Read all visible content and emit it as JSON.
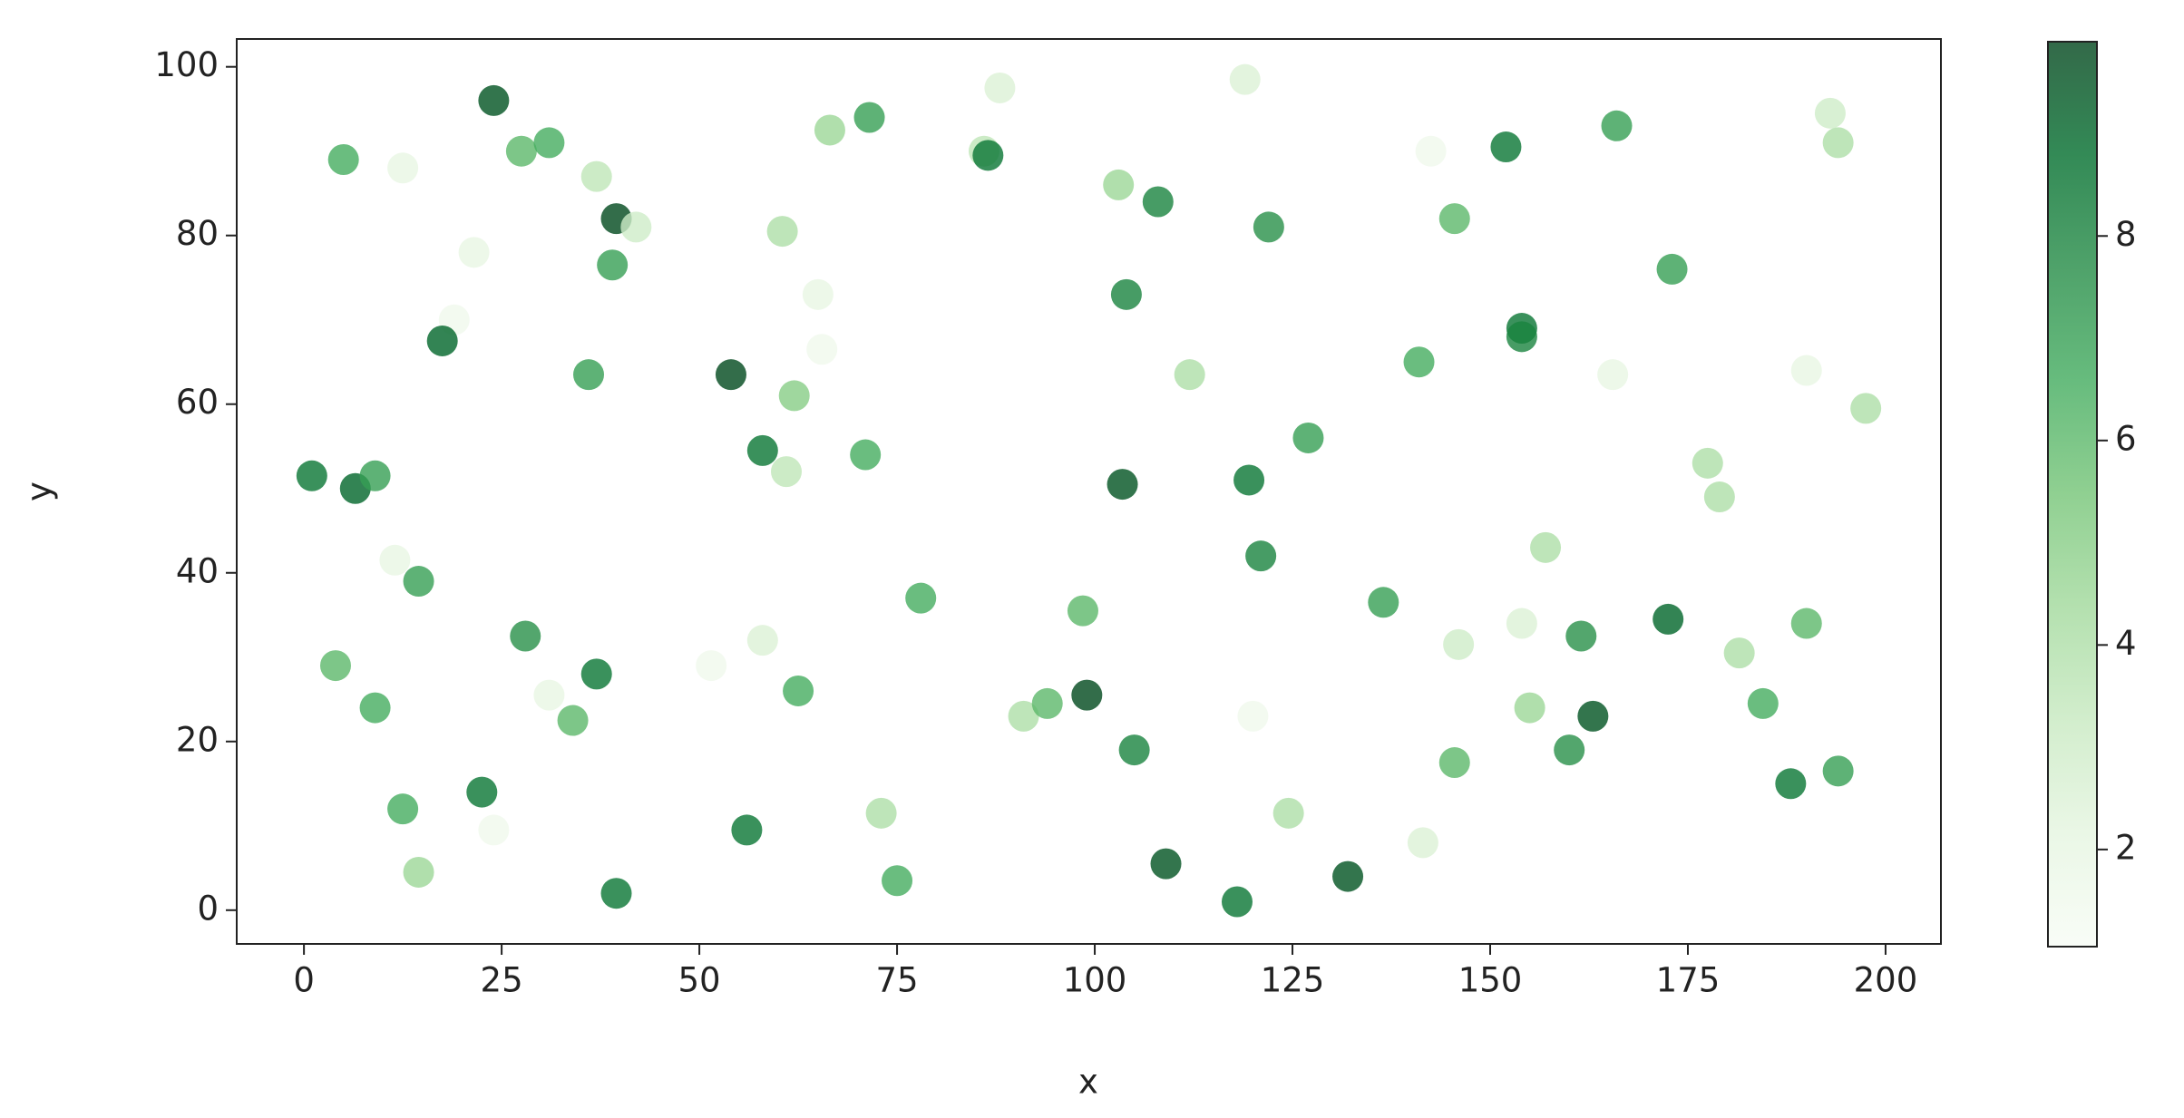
{
  "chart_data": {
    "type": "scatter",
    "xlabel": "x",
    "ylabel": "y",
    "x": [
      24,
      5,
      12.5,
      27.5,
      31,
      37,
      39.5,
      42,
      21.5,
      39,
      19,
      17.5,
      36,
      1,
      6.5,
      9,
      11.5,
      14.5,
      4,
      9,
      12.5,
      14.5,
      22.5,
      24,
      28,
      31,
      34,
      37,
      39.5,
      54,
      58,
      61,
      60.5,
      62,
      65,
      65.5,
      66.5,
      71.5,
      71,
      62.5,
      58,
      51.5,
      56,
      73,
      75,
      78,
      86,
      86.5,
      88,
      103,
      108,
      104,
      112,
      103.5,
      98.5,
      91,
      94,
      99,
      105,
      109,
      118,
      119,
      122,
      119.5,
      121,
      127,
      120,
      124.5,
      132,
      136.5,
      141,
      142.5,
      145.5,
      146,
      145.5,
      141.5,
      152,
      154,
      154,
      155,
      154,
      157,
      161.5,
      160,
      163,
      166,
      165.5,
      173,
      172.5,
      177.5,
      179,
      181.5,
      184.5,
      188,
      194,
      190,
      190,
      193,
      194,
      197.5
    ],
    "y": [
      96,
      89,
      88,
      90,
      91,
      87,
      82,
      81,
      78,
      76.5,
      70,
      67.5,
      63.5,
      51.5,
      50,
      51.5,
      41.5,
      39,
      29,
      24,
      12,
      4.5,
      14,
      9.5,
      32.5,
      25.5,
      22.5,
      28,
      2,
      63.5,
      54.5,
      52,
      80.5,
      61,
      73,
      66.5,
      92.5,
      94,
      54,
      26,
      32,
      29,
      9.5,
      11.5,
      3.5,
      37,
      90,
      89.5,
      97.5,
      86,
      84,
      73,
      63.5,
      50.5,
      35.5,
      23,
      24.5,
      25.5,
      19,
      5.5,
      1,
      98.5,
      81,
      51,
      42,
      56,
      23,
      11.5,
      4,
      36.5,
      65,
      90,
      82,
      31.5,
      17.5,
      8,
      90.5,
      69,
      68,
      24,
      34,
      43,
      32.5,
      19,
      23,
      93,
      63.5,
      76,
      34.5,
      53,
      49,
      30.5,
      24.5,
      15,
      16.5,
      34,
      64,
      94.5,
      91,
      59.5
    ],
    "c": [
      9.5,
      6.5,
      2,
      6,
      6.5,
      3.5,
      9.8,
      3,
      2,
      7,
      1.5,
      9,
      7,
      8.5,
      9,
      7,
      2,
      7,
      6,
      6.5,
      6.5,
      4.5,
      8.5,
      1.5,
      7.5,
      2,
      6,
      8.5,
      8.5,
      9.8,
      8.5,
      3.5,
      4,
      5,
      2,
      1.5,
      4.5,
      7,
      6.5,
      6.5,
      2.5,
      1.5,
      8.5,
      4,
      6.5,
      6.5,
      3.5,
      8.5,
      2.5,
      4.5,
      8,
      8,
      4,
      9.5,
      6,
      4,
      6,
      9.8,
      8,
      9.5,
      8.5,
      2.5,
      7.5,
      8.5,
      8,
      7,
      1.5,
      4,
      9.5,
      7,
      6.5,
      1.5,
      6,
      3,
      6,
      2.5,
      8.5,
      8.5,
      8,
      4.5,
      2.5,
      4,
      7.5,
      7.5,
      9.5,
      7,
      2,
      7,
      9,
      4,
      4,
      4,
      6.5,
      8.5,
      7,
      6,
      2,
      3,
      4,
      4
    ],
    "colormap": [
      "#f7fcf5",
      "#e5f5e0",
      "#c7e9c0",
      "#a1d99b",
      "#74c476",
      "#41ab5d",
      "#238b45",
      "#006d2c",
      "#00441b"
    ],
    "alpha": 0.8,
    "xlim": [
      -8.5,
      207
    ],
    "ylim": [
      -4,
      103.3
    ],
    "xticks": [
      0,
      25,
      50,
      75,
      100,
      125,
      150,
      175,
      200
    ],
    "yticks": [
      0,
      20,
      40,
      60,
      80,
      100
    ],
    "clim": [
      1.05,
      9.9
    ],
    "cticks": [
      2,
      4,
      6,
      8
    ]
  }
}
